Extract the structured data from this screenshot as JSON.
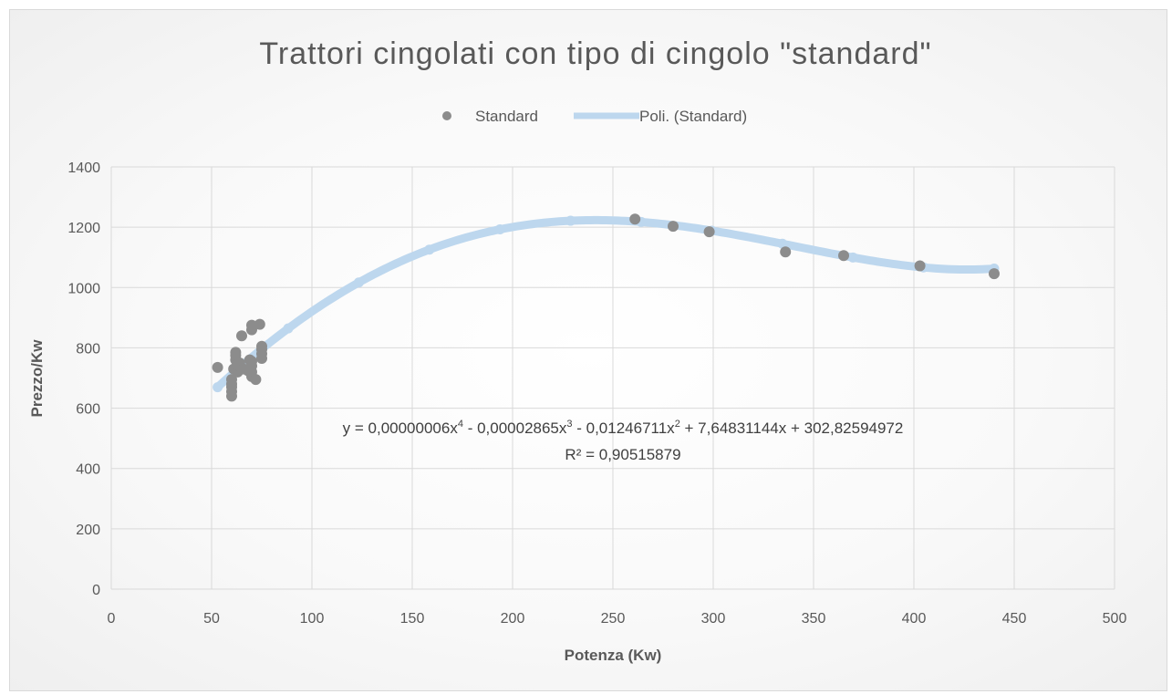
{
  "chart_data": {
    "type": "scatter",
    "title": "Trattori cingolati con tipo di cingolo \"standard\"",
    "xlabel": "Potenza (Kw)",
    "ylabel": "Prezzo/Kw",
    "xlim": [
      0,
      500
    ],
    "ylim": [
      0,
      1400
    ],
    "xticks": [
      "0",
      "50",
      "100",
      "150",
      "200",
      "250",
      "300",
      "350",
      "400",
      "450",
      "500"
    ],
    "yticks": [
      "0",
      "200",
      "400",
      "600",
      "800",
      "1000",
      "1200",
      "1400"
    ],
    "grid": true,
    "legend_position": "top",
    "colors": {
      "points": "#8c8c8c",
      "trendline": "#bdd7ee"
    },
    "series": [
      {
        "name": "Standard",
        "type": "scatter",
        "points": [
          [
            53,
            735
          ],
          [
            60,
            640
          ],
          [
            60,
            655
          ],
          [
            60,
            670
          ],
          [
            60,
            680
          ],
          [
            60,
            695
          ],
          [
            61,
            730
          ],
          [
            62,
            760
          ],
          [
            62,
            775
          ],
          [
            62,
            785
          ],
          [
            63,
            720
          ],
          [
            64,
            750
          ],
          [
            64,
            740
          ],
          [
            65,
            840
          ],
          [
            66,
            730
          ],
          [
            68,
            725
          ],
          [
            69,
            760
          ],
          [
            70,
            705
          ],
          [
            70,
            720
          ],
          [
            70,
            740
          ],
          [
            70,
            755
          ],
          [
            70,
            860
          ],
          [
            70,
            875
          ],
          [
            72,
            695
          ],
          [
            74,
            878
          ],
          [
            75,
            765
          ],
          [
            75,
            780
          ],
          [
            75,
            795
          ],
          [
            75,
            805
          ],
          [
            261,
            1227
          ],
          [
            280,
            1203
          ],
          [
            298,
            1185
          ],
          [
            336,
            1118
          ],
          [
            365,
            1106
          ],
          [
            403,
            1072
          ],
          [
            440,
            1046
          ]
        ]
      },
      {
        "name": "Poli. (Standard)",
        "type": "trendline"
      }
    ],
    "trendline": {
      "coefficients": [
        302.82594972,
        7.64831144,
        -0.01246711,
        -2.865e-05,
        6e-08
      ],
      "equation_prefix": "y = 0,00000006x",
      "equation_parts": [
        "4",
        " - 0,00002865x",
        "3",
        " - 0,01246711x",
        "2",
        " + 7,64831144x + 302,82594972"
      ],
      "r_squared": "R² = 0,90515879"
    }
  }
}
